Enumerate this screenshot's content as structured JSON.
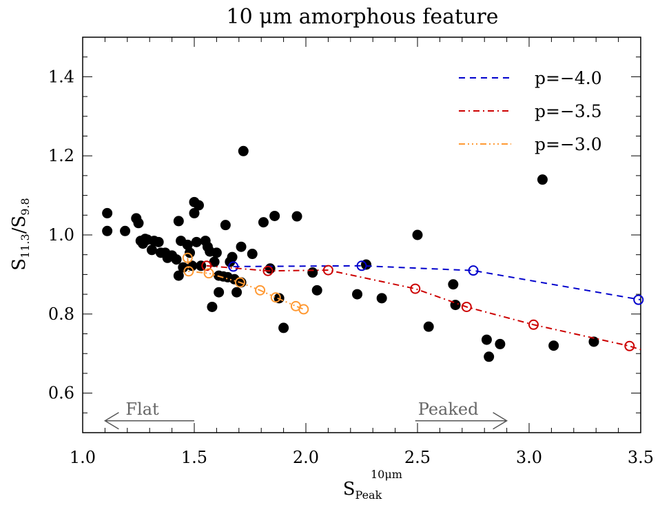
{
  "chart_data": {
    "type": "scatter",
    "title": "10 μm amorphous feature",
    "xlabel": {
      "main": "S",
      "sup": "10μm",
      "sub": "Peak"
    },
    "ylabel": {
      "main": "S",
      "sub1": "11.3",
      "mid": "/S",
      "sub2": "9.8"
    },
    "xlim": [
      1.0,
      3.5
    ],
    "ylim": [
      0.5,
      1.5
    ],
    "xticks": [
      1.0,
      1.5,
      2.0,
      2.5,
      3.0,
      3.5
    ],
    "xtick_labels": [
      "1.0",
      "1.5",
      "2.0",
      "2.5",
      "3.0",
      "3.5"
    ],
    "yticks": [
      0.6,
      0.8,
      1.0,
      1.2,
      1.4
    ],
    "ytick_labels": [
      "0.6",
      "0.8",
      "1.0",
      "1.2",
      "1.4"
    ],
    "grid": false,
    "legend_position": "top-right",
    "observations": {
      "color": "#000000",
      "points": [
        [
          1.11,
          1.055
        ],
        [
          1.11,
          1.01
        ],
        [
          1.19,
          1.01
        ],
        [
          1.24,
          1.042
        ],
        [
          1.25,
          1.03
        ],
        [
          1.26,
          0.985
        ],
        [
          1.27,
          0.978
        ],
        [
          1.28,
          0.99
        ],
        [
          1.29,
          0.988
        ],
        [
          1.31,
          0.962
        ],
        [
          1.32,
          0.985
        ],
        [
          1.34,
          0.982
        ],
        [
          1.35,
          0.955
        ],
        [
          1.37,
          0.955
        ],
        [
          1.38,
          0.942
        ],
        [
          1.4,
          0.948
        ],
        [
          1.42,
          0.938
        ],
        [
          1.43,
          1.035
        ],
        [
          1.44,
          0.985
        ],
        [
          1.43,
          0.897
        ],
        [
          1.45,
          0.918
        ],
        [
          1.47,
          0.975
        ],
        [
          1.48,
          0.955
        ],
        [
          1.49,
          0.922
        ],
        [
          1.5,
          1.083
        ],
        [
          1.5,
          1.055
        ],
        [
          1.52,
          1.075
        ],
        [
          1.51,
          0.982
        ],
        [
          1.53,
          0.922
        ],
        [
          1.55,
          0.985
        ],
        [
          1.56,
          0.97
        ],
        [
          1.57,
          0.958
        ],
        [
          1.58,
          0.818
        ],
        [
          1.59,
          0.932
        ],
        [
          1.6,
          0.955
        ],
        [
          1.61,
          0.897
        ],
        [
          1.61,
          0.855
        ],
        [
          1.63,
          0.895
        ],
        [
          1.64,
          1.025
        ],
        [
          1.65,
          0.893
        ],
        [
          1.66,
          0.932
        ],
        [
          1.67,
          0.944
        ],
        [
          1.68,
          0.888
        ],
        [
          1.69,
          0.855
        ],
        [
          1.71,
          0.97
        ],
        [
          1.71,
          0.88
        ],
        [
          1.72,
          1.212
        ],
        [
          1.76,
          0.952
        ],
        [
          1.81,
          1.032
        ],
        [
          1.84,
          0.915
        ],
        [
          1.86,
          1.048
        ],
        [
          1.88,
          0.84
        ],
        [
          1.9,
          0.765
        ],
        [
          1.96,
          1.047
        ],
        [
          2.03,
          0.905
        ],
        [
          2.05,
          0.86
        ],
        [
          2.23,
          0.85
        ],
        [
          2.27,
          0.925
        ],
        [
          2.34,
          0.84
        ],
        [
          2.5,
          1.0
        ],
        [
          2.55,
          0.768
        ],
        [
          2.66,
          0.875
        ],
        [
          2.67,
          0.823
        ],
        [
          2.81,
          0.735
        ],
        [
          2.82,
          0.692
        ],
        [
          2.87,
          0.724
        ],
        [
          3.06,
          1.14
        ],
        [
          3.11,
          0.72
        ],
        [
          3.29,
          0.73
        ]
      ]
    },
    "series": [
      {
        "name": "p=−4.0",
        "color": "#0000cc",
        "dash": "9,7",
        "x": [
          1.675,
          2.25,
          2.75,
          3.5
        ],
        "y": [
          0.92,
          0.922,
          0.91,
          0.836
        ],
        "markers": [
          [
            1.675,
            0.92
          ],
          [
            2.25,
            0.922
          ],
          [
            2.75,
            0.91
          ],
          [
            3.49,
            0.836
          ]
        ]
      },
      {
        "name": "p=−3.5",
        "color": "#cc0000",
        "dash": "9,5,2,5",
        "x": [
          1.555,
          1.83,
          2.1,
          2.49,
          2.72,
          3.02,
          3.45,
          3.5
        ],
        "y": [
          0.922,
          0.909,
          0.911,
          0.864,
          0.818,
          0.773,
          0.719,
          0.71
        ],
        "markers": [
          [
            1.555,
            0.922
          ],
          [
            1.83,
            0.909
          ],
          [
            2.1,
            0.911
          ],
          [
            2.49,
            0.864
          ],
          [
            2.72,
            0.818
          ],
          [
            3.02,
            0.773
          ],
          [
            3.45,
            0.719
          ]
        ]
      },
      {
        "name": "p=−3.0",
        "color": "#ff9933",
        "dash": "9,4,2,4,2,4,2,4",
        "x": [
          1.47,
          1.475,
          1.565,
          1.705,
          1.795,
          1.865,
          1.955,
          1.99
        ],
        "y": [
          0.942,
          0.908,
          0.903,
          0.88,
          0.86,
          0.842,
          0.82,
          0.812
        ],
        "markers": [
          [
            1.47,
            0.942
          ],
          [
            1.475,
            0.908
          ],
          [
            1.565,
            0.903
          ],
          [
            1.705,
            0.88
          ],
          [
            1.795,
            0.86
          ],
          [
            1.865,
            0.842
          ],
          [
            1.955,
            0.82
          ],
          [
            1.99,
            0.812
          ]
        ]
      }
    ],
    "annotations": [
      {
        "label": "Flat",
        "direction": "left",
        "arrow_x": [
          1.1,
          1.5
        ],
        "y": 0.53
      },
      {
        "label": "Peaked",
        "direction": "right",
        "arrow_x": [
          2.49,
          2.9
        ],
        "y": 0.53
      }
    ]
  }
}
